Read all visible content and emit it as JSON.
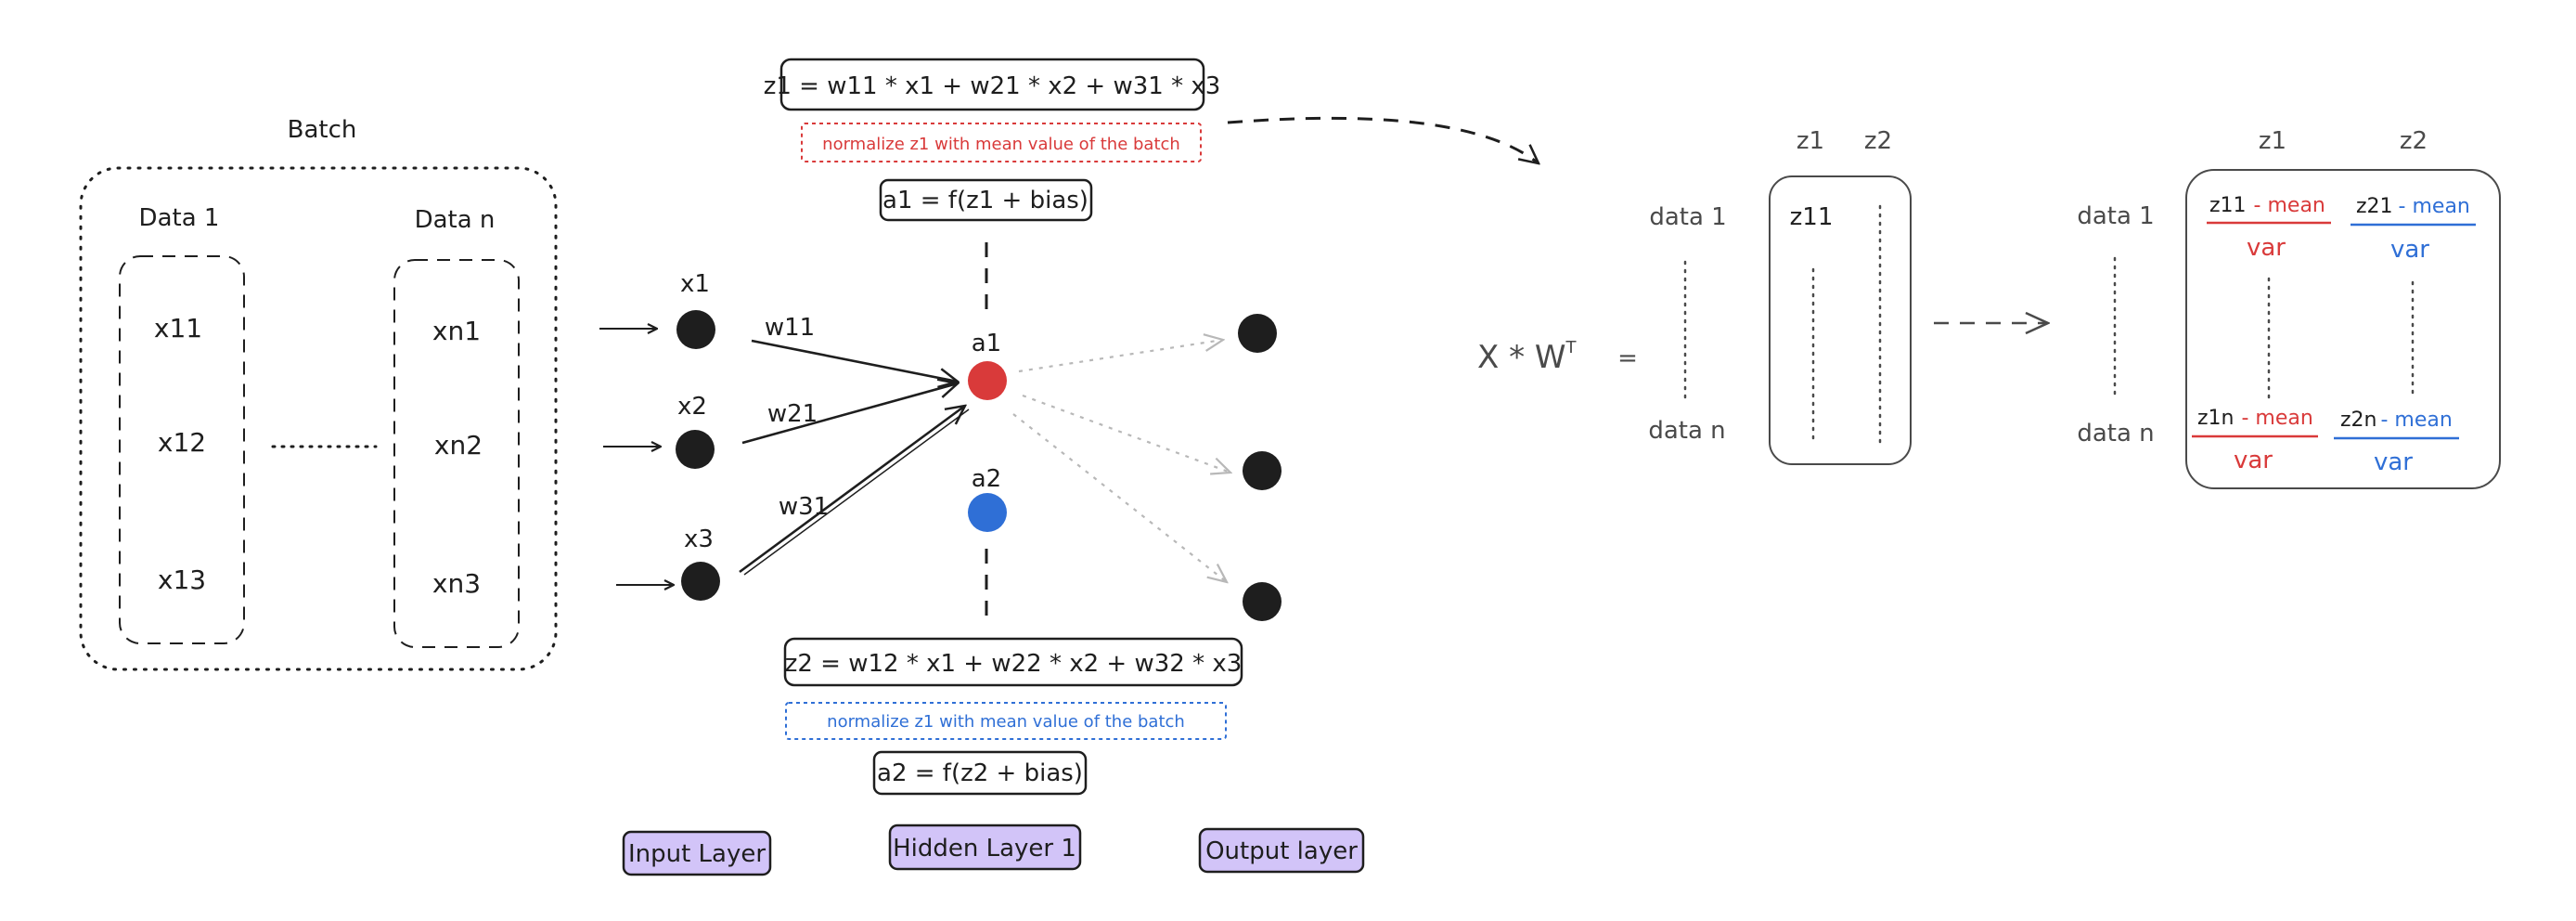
{
  "colors": {
    "ink": "#1e1e1e",
    "red": "#d93a3a",
    "blue": "#2f6fd6",
    "grey_arrow": "#b8b8b8",
    "layer_fill": "#d2c4f8"
  },
  "batch": {
    "title": "Batch",
    "col1_label": "Data 1",
    "coln_label": "Data n",
    "col1": [
      "x11",
      "x12",
      "x13"
    ],
    "coln": [
      "xn1",
      "xn2",
      "xn3"
    ]
  },
  "network": {
    "inputs": [
      "x1",
      "x2",
      "x3"
    ],
    "weights": [
      "w11",
      "w21",
      "w31"
    ],
    "hidden": [
      "a1",
      "a2"
    ],
    "eq_top": "z1 = w11 * x1 + w21 * x2 + w31 * x3",
    "norm_top": "normalize z1 with mean value of the batch",
    "act_top": "a1 = f(z1 + bias)",
    "eq_bottom": "z2 = w12 * x1 + w22 * x2 + w32 * x3",
    "norm_bottom": "normalize z1 with mean value of the batch",
    "act_bottom": "a2 = f(z2 + bias)"
  },
  "layers": {
    "input": "Input Layer",
    "hidden": "Hidden Layer 1",
    "output": "Output layer"
  },
  "matrix": {
    "expr": "X * W",
    "expr_sup": "T",
    "equals": "=",
    "row_first": "data 1",
    "row_last": "data n",
    "col1": "z1",
    "col2": "z2",
    "cell": "z11"
  },
  "normalized": {
    "row_first": "data 1",
    "row_last": "data n",
    "col1": "z1",
    "col2": "z2",
    "c11_var": "z11",
    "c21_var": "z21",
    "c1n_var": "z1n",
    "c2n_var": "z2n",
    "minus_mean": "- mean",
    "var": "var"
  }
}
